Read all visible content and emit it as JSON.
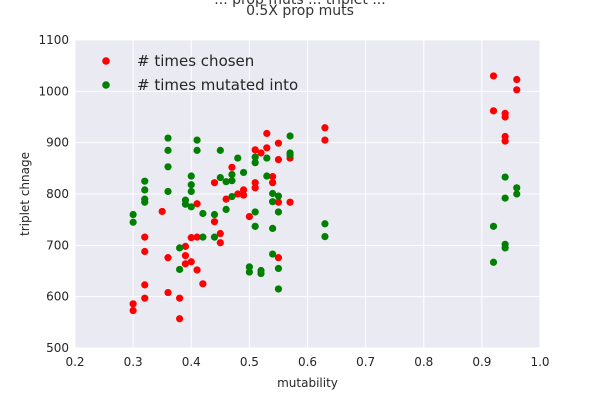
{
  "chart_data": {
    "type": "scatter",
    "title_lines": [
      "... prop muts ... triplet ...",
      "0.5X prop muts"
    ],
    "xlabel": "mutability",
    "ylabel": "triplet chnage",
    "xlim": [
      0.2,
      1.0
    ],
    "ylim": [
      500,
      1100
    ],
    "xticks": [
      "0.2",
      "0.3",
      "0.4",
      "0.5",
      "0.6",
      "0.7",
      "0.8",
      "0.9",
      "1.0"
    ],
    "yticks": [
      "500",
      "600",
      "700",
      "800",
      "900",
      "1000",
      "1100"
    ],
    "grid": true,
    "background": "#eaeaf2",
    "legend_position": "top-left",
    "series": [
      {
        "name": "# times chosen",
        "color": "#ff0000",
        "points": [
          [
            0.3,
            586
          ],
          [
            0.3,
            573
          ],
          [
            0.32,
            597
          ],
          [
            0.32,
            623
          ],
          [
            0.32,
            688
          ],
          [
            0.32,
            716
          ],
          [
            0.35,
            766
          ],
          [
            0.36,
            676
          ],
          [
            0.36,
            608
          ],
          [
            0.38,
            557
          ],
          [
            0.38,
            597
          ],
          [
            0.39,
            698
          ],
          [
            0.39,
            680
          ],
          [
            0.39,
            664
          ],
          [
            0.4,
            668
          ],
          [
            0.4,
            715
          ],
          [
            0.41,
            781
          ],
          [
            0.41,
            716
          ],
          [
            0.41,
            652
          ],
          [
            0.42,
            625
          ],
          [
            0.44,
            822
          ],
          [
            0.44,
            746
          ],
          [
            0.45,
            723
          ],
          [
            0.45,
            705
          ],
          [
            0.46,
            790
          ],
          [
            0.47,
            852
          ],
          [
            0.48,
            800
          ],
          [
            0.49,
            808
          ],
          [
            0.49,
            798
          ],
          [
            0.5,
            756
          ],
          [
            0.51,
            822
          ],
          [
            0.51,
            812
          ],
          [
            0.51,
            886
          ],
          [
            0.52,
            880
          ],
          [
            0.53,
            918
          ],
          [
            0.53,
            890
          ],
          [
            0.54,
            834
          ],
          [
            0.54,
            822
          ],
          [
            0.55,
            784
          ],
          [
            0.55,
            899
          ],
          [
            0.55,
            867
          ],
          [
            0.55,
            676
          ],
          [
            0.57,
            784
          ],
          [
            0.57,
            870
          ],
          [
            0.63,
            929
          ],
          [
            0.63,
            905
          ],
          [
            0.92,
            1030
          ],
          [
            0.92,
            962
          ],
          [
            0.94,
            957
          ],
          [
            0.94,
            950
          ],
          [
            0.94,
            912
          ],
          [
            0.94,
            903
          ],
          [
            0.96,
            1023
          ],
          [
            0.96,
            1003
          ]
        ]
      },
      {
        "name": "# times mutated into",
        "color": "#008000",
        "points": [
          [
            0.3,
            760
          ],
          [
            0.3,
            745
          ],
          [
            0.32,
            825
          ],
          [
            0.32,
            808
          ],
          [
            0.32,
            790
          ],
          [
            0.32,
            784
          ],
          [
            0.36,
            909
          ],
          [
            0.36,
            885
          ],
          [
            0.36,
            853
          ],
          [
            0.36,
            805
          ],
          [
            0.38,
            695
          ],
          [
            0.38,
            653
          ],
          [
            0.39,
            788
          ],
          [
            0.39,
            780
          ],
          [
            0.4,
            835
          ],
          [
            0.4,
            818
          ],
          [
            0.4,
            805
          ],
          [
            0.4,
            775
          ],
          [
            0.41,
            905
          ],
          [
            0.41,
            885
          ],
          [
            0.42,
            762
          ],
          [
            0.42,
            716
          ],
          [
            0.44,
            760
          ],
          [
            0.44,
            716
          ],
          [
            0.45,
            885
          ],
          [
            0.45,
            832
          ],
          [
            0.46,
            824
          ],
          [
            0.46,
            770
          ],
          [
            0.47,
            838
          ],
          [
            0.47,
            826
          ],
          [
            0.47,
            795
          ],
          [
            0.48,
            870
          ],
          [
            0.49,
            842
          ],
          [
            0.5,
            658
          ],
          [
            0.5,
            648
          ],
          [
            0.51,
            765
          ],
          [
            0.51,
            737
          ],
          [
            0.51,
            872
          ],
          [
            0.51,
            861
          ],
          [
            0.52,
            651
          ],
          [
            0.52,
            645
          ],
          [
            0.53,
            870
          ],
          [
            0.53,
            835
          ],
          [
            0.54,
            801
          ],
          [
            0.54,
            785
          ],
          [
            0.54,
            733
          ],
          [
            0.55,
            796
          ],
          [
            0.55,
            765
          ],
          [
            0.55,
            655
          ],
          [
            0.55,
            615
          ],
          [
            0.54,
            683
          ],
          [
            0.57,
            913
          ],
          [
            0.57,
            880
          ],
          [
            0.57,
            876
          ],
          [
            0.63,
            742
          ],
          [
            0.63,
            717
          ],
          [
            0.92,
            737
          ],
          [
            0.92,
            667
          ],
          [
            0.94,
            833
          ],
          [
            0.94,
            792
          ],
          [
            0.94,
            702
          ],
          [
            0.94,
            695
          ],
          [
            0.96,
            812
          ],
          [
            0.96,
            800
          ]
        ]
      }
    ]
  }
}
